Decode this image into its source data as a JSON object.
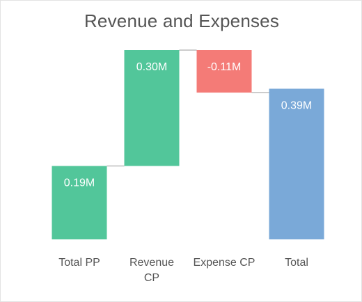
{
  "chart_data": {
    "type": "waterfall",
    "title": "Revenue and Expenses",
    "categories": [
      "Total PP",
      "Revenue CP",
      "Expense CP",
      "Total"
    ],
    "category_lines": [
      [
        "Total PP"
      ],
      [
        "Revenue",
        "CP"
      ],
      [
        "Expense CP"
      ],
      [
        "Total"
      ]
    ],
    "kinds": [
      "total",
      "increase",
      "decrease",
      "total"
    ],
    "values": [
      0.19,
      0.3,
      -0.11,
      0.39
    ],
    "data_labels": [
      "0.19M",
      "0.30M",
      "-0.11M",
      "0.39M"
    ],
    "units": "M",
    "ylim": [
      0,
      0.49
    ],
    "grid": false,
    "legend": "none",
    "colors": {
      "increase": "#52C69A",
      "decrease": "#F47B77",
      "total": "#7AA9D8",
      "start": "#52C69A",
      "connector": "#BBBBBB"
    }
  }
}
